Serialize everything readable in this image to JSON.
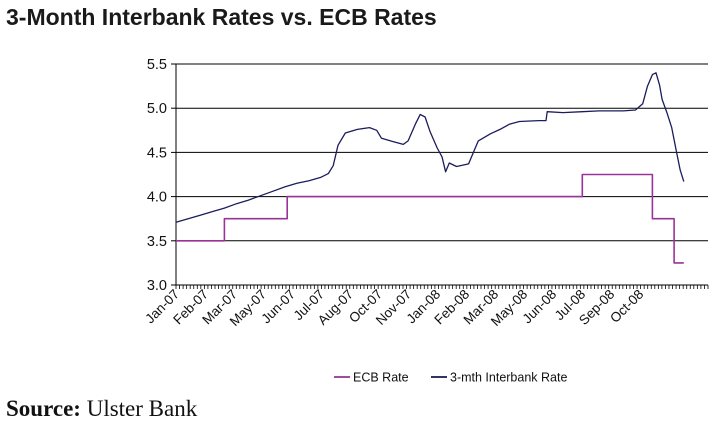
{
  "chart_data": {
    "type": "line",
    "title": "3-Month Interbank Rates vs. ECB Rates",
    "xlabel": "",
    "ylabel": "",
    "ylim": [
      3.0,
      5.5
    ],
    "yticks": [
      "3.0",
      "3.5",
      "4.0",
      "4.5",
      "5.0",
      "5.5"
    ],
    "grid": "horizontal",
    "x_range_months": [
      0,
      22
    ],
    "x_tick_labels": [
      "Jan-07",
      "Feb-07",
      "Mar-07",
      "May-07",
      "Jun-07",
      "Jul-07",
      "Aug-07",
      "Oct-07",
      "Nov-07",
      "Jan-08",
      "Feb-08",
      "Mar-08",
      "May-08",
      "Jun-08",
      "Jul-08",
      "Sep-08",
      "Oct-08"
    ],
    "x_tick_positions_months": [
      0,
      1.2,
      2.4,
      3.6,
      4.8,
      6.0,
      7.2,
      8.4,
      9.6,
      10.8,
      12.0,
      13.2,
      14.4,
      15.6,
      16.8,
      18.0,
      19.2
    ],
    "legend_position": "bottom",
    "series": [
      {
        "name": "ECB Rate",
        "color": "#993399",
        "step": true,
        "points": [
          [
            0,
            3.5
          ],
          [
            2.0,
            3.5
          ],
          [
            2.0,
            3.75
          ],
          [
            4.6,
            3.75
          ],
          [
            4.6,
            4.0
          ],
          [
            16.8,
            4.0
          ],
          [
            16.8,
            4.25
          ],
          [
            19.7,
            4.25
          ],
          [
            19.7,
            3.75
          ],
          [
            20.6,
            3.75
          ],
          [
            20.6,
            3.25
          ],
          [
            21.0,
            3.25
          ]
        ]
      },
      {
        "name": "3-mth Interbank Rate",
        "color": "#1c1c5c",
        "points": [
          [
            0,
            3.71
          ],
          [
            0.5,
            3.75
          ],
          [
            1.0,
            3.79
          ],
          [
            1.5,
            3.83
          ],
          [
            2.0,
            3.87
          ],
          [
            2.5,
            3.92
          ],
          [
            3.0,
            3.96
          ],
          [
            3.5,
            4.01
          ],
          [
            4.0,
            4.06
          ],
          [
            4.5,
            4.11
          ],
          [
            5.0,
            4.15
          ],
          [
            5.5,
            4.18
          ],
          [
            6.0,
            4.22
          ],
          [
            6.3,
            4.26
          ],
          [
            6.5,
            4.35
          ],
          [
            6.7,
            4.58
          ],
          [
            7.0,
            4.72
          ],
          [
            7.5,
            4.76
          ],
          [
            8.0,
            4.78
          ],
          [
            8.3,
            4.75
          ],
          [
            8.5,
            4.66
          ],
          [
            9.0,
            4.62
          ],
          [
            9.4,
            4.59
          ],
          [
            9.6,
            4.63
          ],
          [
            9.9,
            4.82
          ],
          [
            10.1,
            4.93
          ],
          [
            10.3,
            4.9
          ],
          [
            10.5,
            4.74
          ],
          [
            10.8,
            4.55
          ],
          [
            11.0,
            4.45
          ],
          [
            11.15,
            4.28
          ],
          [
            11.3,
            4.38
          ],
          [
            11.6,
            4.34
          ],
          [
            12.1,
            4.37
          ],
          [
            12.3,
            4.5
          ],
          [
            12.5,
            4.63
          ],
          [
            13.0,
            4.71
          ],
          [
            13.4,
            4.76
          ],
          [
            13.8,
            4.82
          ],
          [
            14.2,
            4.85
          ],
          [
            15.0,
            4.86
          ],
          [
            15.3,
            4.86
          ],
          [
            15.35,
            4.96
          ],
          [
            16.0,
            4.95
          ],
          [
            16.8,
            4.96
          ],
          [
            17.5,
            4.97
          ],
          [
            18.5,
            4.97
          ],
          [
            19.0,
            4.98
          ],
          [
            19.3,
            5.05
          ],
          [
            19.5,
            5.25
          ],
          [
            19.7,
            5.38
          ],
          [
            19.85,
            5.4
          ],
          [
            20.0,
            5.26
          ],
          [
            20.1,
            5.1
          ],
          [
            20.3,
            4.95
          ],
          [
            20.5,
            4.78
          ],
          [
            20.7,
            4.5
          ],
          [
            20.85,
            4.3
          ],
          [
            21.0,
            4.17
          ]
        ]
      }
    ]
  },
  "source": {
    "label": "Source:",
    "text": "Ulster Bank"
  }
}
